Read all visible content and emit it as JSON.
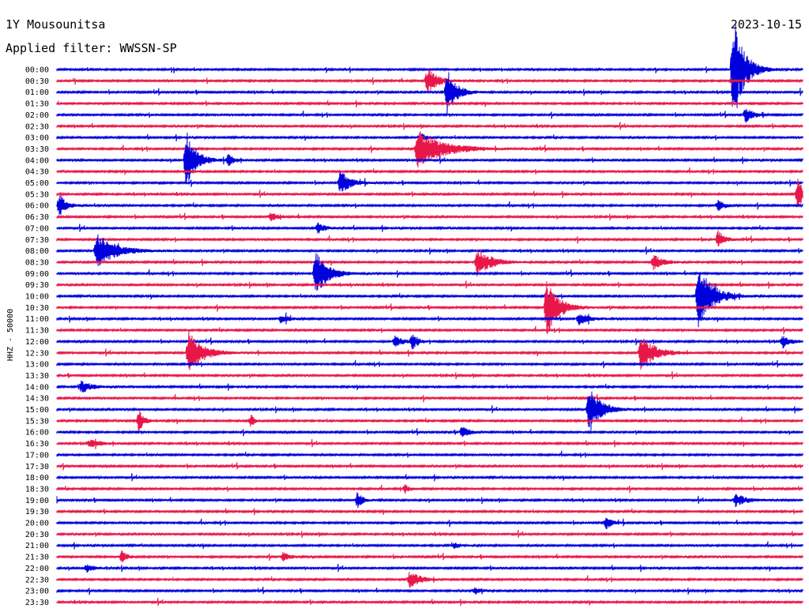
{
  "header": {
    "station": "1Y Mousounitsa",
    "date": "2023-10-15",
    "filter": "Applied filter: WWSSN-SP"
  },
  "chart_data": {
    "type": "line",
    "ylabel": "HHZ - 50000",
    "rows": [
      "00:00",
      "00:30",
      "01:00",
      "01:30",
      "02:00",
      "02:30",
      "03:00",
      "03:30",
      "04:00",
      "04:30",
      "05:00",
      "05:30",
      "06:00",
      "06:30",
      "07:00",
      "07:30",
      "08:00",
      "08:30",
      "09:00",
      "09:30",
      "10:00",
      "10:30",
      "11:00",
      "11:30",
      "12:00",
      "12:30",
      "13:00",
      "13:30",
      "14:00",
      "14:30",
      "15:00",
      "15:30",
      "16:00",
      "16:30",
      "17:00",
      "17:30",
      "18:00",
      "18:30",
      "19:00",
      "19:30",
      "20:00",
      "20:30",
      "21:00",
      "21:30",
      "22:00",
      "22:30",
      "23:00",
      "23:30"
    ],
    "colors": [
      "#0000dd",
      "#e8174a"
    ],
    "minutes_per_row": 30,
    "events": [
      {
        "row": 0,
        "minute": 27.2,
        "amp": 72,
        "dur": 0.9
      },
      {
        "row": 1,
        "minute": 14.9,
        "amp": 18,
        "dur": 0.8
      },
      {
        "row": 2,
        "minute": 15.7,
        "amp": 30,
        "dur": 0.8
      },
      {
        "row": 4,
        "minute": 27.7,
        "amp": 10,
        "dur": 0.6
      },
      {
        "row": 6,
        "minute": 14.6,
        "amp": 6,
        "dur": 0.6
      },
      {
        "row": 7,
        "minute": 14.5,
        "amp": 24,
        "dur": 2.2
      },
      {
        "row": 8,
        "minute": 5.2,
        "amp": 42,
        "dur": 0.8
      },
      {
        "row": 8,
        "minute": 6.9,
        "amp": 7,
        "dur": 0.5
      },
      {
        "row": 10,
        "minute": 11.4,
        "amp": 16,
        "dur": 0.8
      },
      {
        "row": 11,
        "minute": 29.8,
        "amp": 22,
        "dur": 0.5
      },
      {
        "row": 12,
        "minute": 0.1,
        "amp": 15,
        "dur": 0.6
      },
      {
        "row": 12,
        "minute": 26.6,
        "amp": 8,
        "dur": 0.5
      },
      {
        "row": 13,
        "minute": 8.6,
        "amp": 6,
        "dur": 0.6
      },
      {
        "row": 14,
        "minute": 10.5,
        "amp": 7,
        "dur": 0.6
      },
      {
        "row": 15,
        "minute": 26.6,
        "amp": 12,
        "dur": 0.5
      },
      {
        "row": 16,
        "minute": 1.6,
        "amp": 22,
        "dur": 1.6
      },
      {
        "row": 17,
        "minute": 16.9,
        "amp": 18,
        "dur": 1.2
      },
      {
        "row": 17,
        "minute": 24.0,
        "amp": 10,
        "dur": 0.8
      },
      {
        "row": 18,
        "minute": 10.4,
        "amp": 32,
        "dur": 1.0
      },
      {
        "row": 20,
        "minute": 25.8,
        "amp": 40,
        "dur": 1.2
      },
      {
        "row": 21,
        "minute": 19.7,
        "amp": 36,
        "dur": 1.0
      },
      {
        "row": 22,
        "minute": 21.0,
        "amp": 8,
        "dur": 0.8
      },
      {
        "row": 22,
        "minute": 9.0,
        "amp": 5,
        "dur": 0.8
      },
      {
        "row": 24,
        "minute": 14.3,
        "amp": 10,
        "dur": 0.5
      },
      {
        "row": 24,
        "minute": 13.6,
        "amp": 7,
        "dur": 0.7
      },
      {
        "row": 24,
        "minute": 29.2,
        "amp": 8,
        "dur": 0.7
      },
      {
        "row": 25,
        "minute": 5.3,
        "amp": 28,
        "dur": 1.2
      },
      {
        "row": 25,
        "minute": 23.5,
        "amp": 24,
        "dur": 1.2
      },
      {
        "row": 28,
        "minute": 1.0,
        "amp": 8,
        "dur": 0.8
      },
      {
        "row": 30,
        "minute": 21.4,
        "amp": 32,
        "dur": 1.0
      },
      {
        "row": 31,
        "minute": 3.3,
        "amp": 16,
        "dur": 0.4
      },
      {
        "row": 31,
        "minute": 7.8,
        "amp": 8,
        "dur": 0.3
      },
      {
        "row": 32,
        "minute": 16.3,
        "amp": 8,
        "dur": 0.6
      },
      {
        "row": 33,
        "minute": 1.3,
        "amp": 5,
        "dur": 1.0
      },
      {
        "row": 37,
        "minute": 14.0,
        "amp": 5,
        "dur": 0.5
      },
      {
        "row": 38,
        "minute": 12.1,
        "amp": 12,
        "dur": 0.4
      },
      {
        "row": 38,
        "minute": 27.3,
        "amp": 8,
        "dur": 1.0
      },
      {
        "row": 40,
        "minute": 22.1,
        "amp": 8,
        "dur": 0.5
      },
      {
        "row": 42,
        "minute": 16.0,
        "amp": 4,
        "dur": 0.5
      },
      {
        "row": 43,
        "minute": 2.6,
        "amp": 8,
        "dur": 0.5
      },
      {
        "row": 43,
        "minute": 9.1,
        "amp": 6,
        "dur": 0.6
      },
      {
        "row": 44,
        "minute": 1.2,
        "amp": 6,
        "dur": 0.6
      },
      {
        "row": 45,
        "minute": 14.2,
        "amp": 12,
        "dur": 0.8
      },
      {
        "row": 46,
        "minute": 16.8,
        "amp": 5,
        "dur": 0.6
      }
    ]
  }
}
